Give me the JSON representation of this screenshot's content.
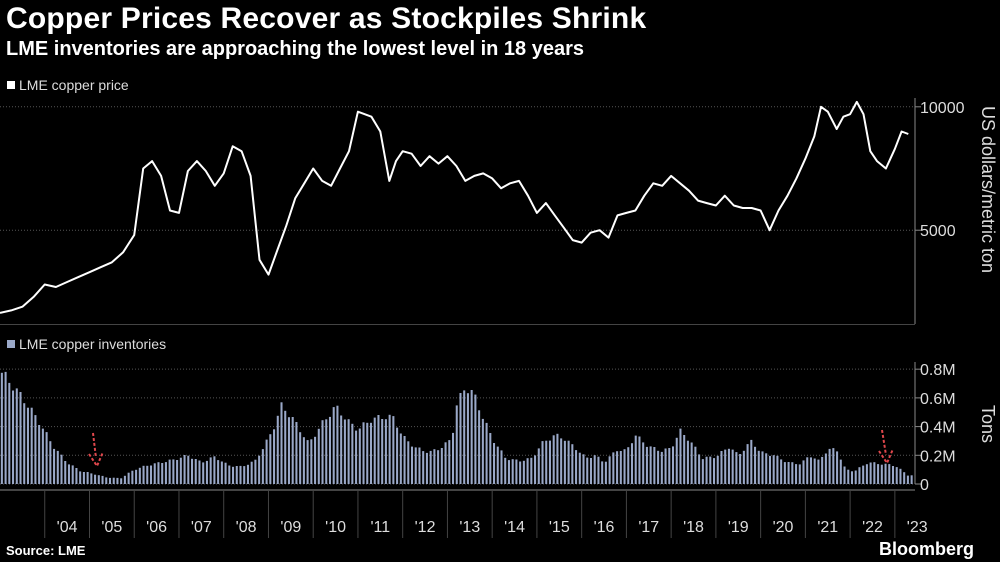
{
  "header": {
    "title": "Copper Prices Recover as Stockpiles Shrink",
    "subtitle": "LME inventories are approaching the lowest level in 18 years"
  },
  "footer": {
    "source": "Source: LME",
    "brand": "Bloomberg"
  },
  "colors": {
    "background": "#000000",
    "price_line": "#ffffff",
    "inventory_bars": "#9aa8c8",
    "gridline": "#555555",
    "arrow": "#e0474c"
  },
  "chart_data": [
    {
      "type": "line",
      "legend": "LME copper price",
      "ylabel": "US dollars/metric ton",
      "ylim": [
        1200,
        10600
      ],
      "yticks": [
        5000,
        10000
      ],
      "grid": true,
      "legend_position": "top-left",
      "series": [
        {
          "name": "LME copper price",
          "x": [
            2003.0,
            2003.25,
            2003.5,
            2003.75,
            2004.0,
            2004.25,
            2004.5,
            2004.75,
            2005.0,
            2005.25,
            2005.5,
            2005.75,
            2006.0,
            2006.2,
            2006.4,
            2006.6,
            2006.8,
            2007.0,
            2007.2,
            2007.4,
            2007.6,
            2007.8,
            2008.0,
            2008.2,
            2008.4,
            2008.6,
            2008.8,
            2009.0,
            2009.2,
            2009.4,
            2009.6,
            2009.8,
            2010.0,
            2010.2,
            2010.4,
            2010.6,
            2010.8,
            2011.0,
            2011.15,
            2011.3,
            2011.5,
            2011.7,
            2011.85,
            2012.0,
            2012.2,
            2012.4,
            2012.6,
            2012.8,
            2013.0,
            2013.2,
            2013.4,
            2013.6,
            2013.8,
            2014.0,
            2014.2,
            2014.4,
            2014.6,
            2014.8,
            2015.0,
            2015.2,
            2015.4,
            2015.6,
            2015.8,
            2016.0,
            2016.2,
            2016.4,
            2016.6,
            2016.8,
            2017.0,
            2017.2,
            2017.4,
            2017.6,
            2017.8,
            2018.0,
            2018.2,
            2018.4,
            2018.6,
            2018.8,
            2019.0,
            2019.2,
            2019.4,
            2019.6,
            2019.8,
            2020.0,
            2020.2,
            2020.4,
            2020.6,
            2020.8,
            2021.0,
            2021.2,
            2021.35,
            2021.5,
            2021.7,
            2021.85,
            2022.0,
            2022.15,
            2022.3,
            2022.45,
            2022.6,
            2022.8,
            2023.0,
            2023.15,
            2023.3
          ],
          "values": [
            1650,
            1750,
            1900,
            2300,
            2800,
            2700,
            2900,
            3100,
            3300,
            3500,
            3700,
            4100,
            4800,
            7500,
            7800,
            7200,
            5800,
            5700,
            7400,
            7800,
            7400,
            6800,
            7300,
            8400,
            8200,
            7200,
            3800,
            3200,
            4200,
            5200,
            6300,
            6900,
            7500,
            7000,
            6800,
            7500,
            8200,
            9800,
            9700,
            9600,
            9000,
            7000,
            7800,
            8200,
            8100,
            7600,
            8000,
            7700,
            8000,
            7600,
            7000,
            7200,
            7300,
            7100,
            6700,
            6900,
            7000,
            6400,
            5700,
            6100,
            5600,
            5100,
            4600,
            4500,
            4900,
            5000,
            4700,
            5600,
            5700,
            5800,
            6400,
            6900,
            6800,
            7200,
            6900,
            6600,
            6200,
            6100,
            6000,
            6400,
            6000,
            5900,
            5900,
            5800,
            5000,
            5800,
            6400,
            7100,
            7900,
            8800,
            10000,
            9800,
            9100,
            9600,
            9700,
            10200,
            9700,
            8200,
            7800,
            7500,
            8300,
            9000,
            8900
          ]
        }
      ]
    },
    {
      "type": "bar",
      "legend": "LME copper inventories",
      "ylabel": "Tons",
      "ylim": [
        0,
        850000
      ],
      "yticks": [
        0,
        200000,
        400000,
        600000,
        800000
      ],
      "ytick_labels": [
        "0",
        "0.2M",
        "0.4M",
        "0.6M",
        "0.8M"
      ],
      "grid": true,
      "legend_position": "top-left",
      "x_tick_labels": [
        "'04",
        "'05",
        "'06",
        "'07",
        "'08",
        "'09",
        "'10",
        "'11",
        "'12",
        "'13",
        "'14",
        "'15",
        "'16",
        "'17",
        "'18",
        "'19",
        "'20",
        "'21",
        "'22",
        "'23"
      ],
      "x_tick_years": [
        2004,
        2005,
        2006,
        2007,
        2008,
        2009,
        2010,
        2011,
        2012,
        2013,
        2014,
        2015,
        2016,
        2017,
        2018,
        2019,
        2020,
        2021,
        2022,
        2023
      ],
      "xlim": [
        2003.0,
        2023.45
      ],
      "anchor_x": [
        2003.0,
        2003.3,
        2003.6,
        2003.9,
        2004.2,
        2004.5,
        2004.8,
        2005.1,
        2005.4,
        2005.7,
        2006.0,
        2006.3,
        2006.6,
        2006.9,
        2007.2,
        2007.5,
        2007.8,
        2008.1,
        2008.4,
        2008.7,
        2008.9,
        2009.1,
        2009.3,
        2009.6,
        2009.9,
        2010.2,
        2010.5,
        2010.8,
        2011.0,
        2011.3,
        2011.6,
        2011.8,
        2012.0,
        2012.3,
        2012.6,
        2012.9,
        2013.1,
        2013.2,
        2013.4,
        2013.6,
        2013.8,
        2014.0,
        2014.3,
        2014.6,
        2014.9,
        2015.1,
        2015.4,
        2015.6,
        2015.9,
        2016.1,
        2016.3,
        2016.5,
        2016.8,
        2017.0,
        2017.2,
        2017.5,
        2017.8,
        2018.0,
        2018.2,
        2018.4,
        2018.7,
        2019.0,
        2019.3,
        2019.5,
        2019.8,
        2020.0,
        2020.3,
        2020.6,
        2020.9,
        2021.1,
        2021.3,
        2021.5,
        2021.7,
        2021.9,
        2022.1,
        2022.4,
        2022.7,
        2023.0,
        2023.3
      ],
      "anchor_values": [
        790000,
        680000,
        560000,
        420000,
        260000,
        150000,
        90000,
        70000,
        45000,
        40000,
        100000,
        130000,
        150000,
        170000,
        200000,
        150000,
        190000,
        130000,
        120000,
        160000,
        260000,
        380000,
        550000,
        430000,
        280000,
        420000,
        540000,
        430000,
        380000,
        450000,
        470000,
        460000,
        330000,
        250000,
        220000,
        260000,
        320000,
        540000,
        680000,
        620000,
        460000,
        320000,
        180000,
        160000,
        180000,
        280000,
        340000,
        320000,
        240000,
        180000,
        200000,
        150000,
        240000,
        230000,
        340000,
        260000,
        230000,
        250000,
        370000,
        310000,
        180000,
        190000,
        260000,
        200000,
        300000,
        220000,
        200000,
        150000,
        140000,
        200000,
        160000,
        240000,
        240000,
        100000,
        90000,
        150000,
        140000,
        130000,
        60000
      ]
    }
  ]
}
